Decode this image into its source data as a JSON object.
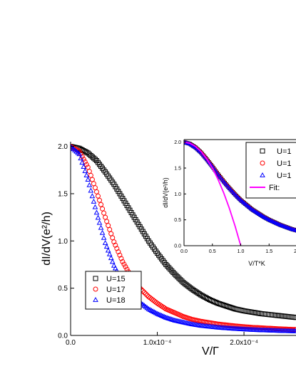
{
  "chart_data": [
    {
      "type": "scatter",
      "role": "main",
      "title": "",
      "xlabel": "V/Γ",
      "ylabel": "dI/dV(e²/h)",
      "xlim": [
        0,
        0.00026
      ],
      "ylim": [
        0,
        2.05
      ],
      "x_ticks": [
        0,
        0.0001,
        0.0002
      ],
      "x_tick_labels": [
        "0.0",
        "1.0x10⁻⁴",
        "2.0x10⁻⁴"
      ],
      "y_ticks": [
        0,
        0.5,
        1.0,
        1.5,
        2.0
      ],
      "y_tick_labels": [
        "0.0",
        "0.5",
        "1.0",
        "1.5",
        "2.0"
      ],
      "legend_position": "bottom-left",
      "series": [
        {
          "name": "U=15",
          "marker": "square",
          "color": "#000000",
          "x": [
            0,
            1e-05,
            2e-05,
            3e-05,
            4e-05,
            5e-05,
            6e-05,
            7e-05,
            8e-05,
            9e-05,
            0.0001,
            0.00011,
            0.00012,
            0.00013,
            0.00014,
            0.00015,
            0.00016,
            0.00017,
            0.00018,
            0.00019,
            0.0002,
            0.00021,
            0.00022,
            0.00023,
            0.00024,
            0.00025,
            0.00026
          ],
          "y": [
            2.0,
            1.98,
            1.93,
            1.85,
            1.73,
            1.6,
            1.45,
            1.3,
            1.15,
            1.0,
            0.87,
            0.75,
            0.65,
            0.56,
            0.49,
            0.43,
            0.38,
            0.34,
            0.31,
            0.28,
            0.26,
            0.245,
            0.23,
            0.22,
            0.21,
            0.2,
            0.19
          ]
        },
        {
          "name": "U=17",
          "marker": "circle",
          "color": "#ff0000",
          "x": [
            0,
            1e-05,
            2e-05,
            3e-05,
            4e-05,
            5e-05,
            6e-05,
            7e-05,
            8e-05,
            9e-05,
            0.0001,
            0.00011,
            0.00012,
            0.00013,
            0.00014,
            0.00015,
            0.00016,
            0.00017,
            0.00018,
            0.00019,
            0.0002,
            0.00021,
            0.00022,
            0.00023,
            0.00024,
            0.00025,
            0.00026
          ],
          "y": [
            2.0,
            1.95,
            1.78,
            1.52,
            1.25,
            0.99,
            0.78,
            0.62,
            0.5,
            0.41,
            0.34,
            0.28,
            0.24,
            0.2,
            0.17,
            0.15,
            0.135,
            0.12,
            0.11,
            0.1,
            0.092,
            0.085,
            0.08,
            0.075,
            0.07,
            0.066,
            0.062
          ]
        },
        {
          "name": "U=18",
          "marker": "triangle",
          "color": "#0000ff",
          "x": [
            0,
            1e-05,
            2e-05,
            3e-05,
            4e-05,
            5e-05,
            6e-05,
            7e-05,
            8e-05,
            9e-05,
            0.0001,
            0.00011,
            0.00012,
            0.00013,
            0.00014,
            0.00015,
            0.00016,
            0.00017,
            0.00018,
            0.00019,
            0.0002,
            0.00021,
            0.00022,
            0.00023,
            0.00024,
            0.00025,
            0.00026
          ],
          "y": [
            2.0,
            1.92,
            1.65,
            1.3,
            0.98,
            0.74,
            0.57,
            0.44,
            0.35,
            0.28,
            0.23,
            0.19,
            0.16,
            0.14,
            0.12,
            0.105,
            0.095,
            0.085,
            0.078,
            0.072,
            0.066,
            0.061,
            0.057,
            0.054,
            0.051,
            0.048,
            0.046
          ]
        }
      ]
    },
    {
      "type": "scatter",
      "role": "inset",
      "title": "",
      "xlabel": "V/T*K",
      "ylabel": "dI/dV(e²/h)",
      "xlim": [
        0,
        2.1
      ],
      "ylim": [
        0,
        2.05
      ],
      "x_ticks": [
        0,
        0.5,
        1.0,
        1.5,
        2.0
      ],
      "x_tick_labels": [
        "0.0",
        "0.5",
        "1.0",
        "1.5",
        "2.0"
      ],
      "y_ticks": [
        0,
        0.5,
        1.0,
        1.5,
        2.0
      ],
      "y_tick_labels": [
        "0.0",
        "0.5",
        "1.0",
        "1.5",
        "2.0"
      ],
      "legend_position": "top-right",
      "series": [
        {
          "name": "U=1",
          "marker": "square",
          "color": "#000000",
          "x": [
            0,
            0.1,
            0.2,
            0.3,
            0.4,
            0.5,
            0.6,
            0.7,
            0.8,
            0.9,
            1.0,
            1.1,
            1.2,
            1.3,
            1.4,
            1.5,
            1.6,
            1.7,
            1.8,
            1.9,
            2.0,
            2.1
          ],
          "y": [
            2.0,
            1.97,
            1.9,
            1.8,
            1.67,
            1.53,
            1.38,
            1.24,
            1.11,
            0.99,
            0.88,
            0.79,
            0.7,
            0.63,
            0.56,
            0.5,
            0.45,
            0.4,
            0.36,
            0.32,
            0.29,
            0.26
          ]
        },
        {
          "name": "U=1",
          "marker": "circle",
          "color": "#ff0000",
          "x": [
            0,
            0.1,
            0.2,
            0.3,
            0.4,
            0.5,
            0.6,
            0.7,
            0.8,
            0.9,
            1.0,
            1.1,
            1.2,
            1.3,
            1.4,
            1.5,
            1.6,
            1.7,
            1.8,
            1.9,
            2.0,
            2.1
          ],
          "y": [
            2.0,
            1.97,
            1.9,
            1.8,
            1.67,
            1.53,
            1.38,
            1.24,
            1.11,
            0.99,
            0.88,
            0.79,
            0.7,
            0.63,
            0.56,
            0.5,
            0.45,
            0.4,
            0.36,
            0.32,
            0.29,
            0.26
          ]
        },
        {
          "name": "U=1",
          "marker": "triangle",
          "color": "#0000ff",
          "x": [
            0,
            0.1,
            0.2,
            0.3,
            0.4,
            0.5,
            0.6,
            0.7,
            0.8,
            0.9,
            1.0,
            1.1,
            1.2,
            1.3,
            1.4,
            1.5,
            1.6,
            1.7,
            1.8,
            1.9,
            2.0,
            2.1
          ],
          "y": [
            2.0,
            1.97,
            1.9,
            1.8,
            1.67,
            1.53,
            1.38,
            1.24,
            1.11,
            0.99,
            0.88,
            0.79,
            0.7,
            0.63,
            0.56,
            0.5,
            0.45,
            0.4,
            0.36,
            0.32,
            0.29,
            0.26
          ]
        },
        {
          "name": "Fit:",
          "marker": "line",
          "color": "#ff00ff",
          "x": [
            0,
            0.1,
            0.2,
            0.3,
            0.4,
            0.5,
            0.6,
            0.7,
            0.8,
            0.9,
            1.0
          ],
          "y": [
            2.0,
            1.98,
            1.92,
            1.82,
            1.68,
            1.5,
            1.28,
            1.02,
            0.72,
            0.38,
            0.0
          ]
        }
      ]
    }
  ]
}
